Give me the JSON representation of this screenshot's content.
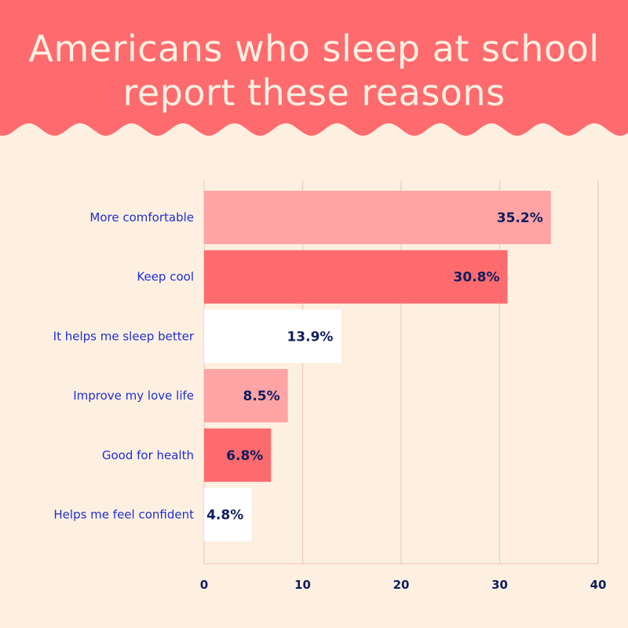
{
  "title_lines": [
    "Americans who sleep at school",
    "report these reasons"
  ],
  "colors": {
    "background": "#fdf0e1",
    "header": "#fe6b6f",
    "bar_colors": [
      "#fea4a4",
      "#fe6b6f",
      "#ffffff",
      "#fea4a4",
      "#fe6b6f",
      "#ffffff"
    ],
    "category_text": "#1f2fd0",
    "value_text": "#0f1d5e",
    "grid": "#f1cfc8"
  },
  "chart_data": {
    "type": "bar",
    "orientation": "horizontal",
    "title": "Americans who sleep at school report these reasons",
    "categories": [
      "More comfortable",
      "Keep cool",
      "It helps me sleep better",
      "Improve my love life",
      "Good for health",
      "Helps me feel confident"
    ],
    "values": [
      35.2,
      30.8,
      13.9,
      8.5,
      6.8,
      4.8
    ],
    "value_labels": [
      "35.2%",
      "30.8%",
      "13.9%",
      "8.5%",
      "6.8%",
      "4.8%"
    ],
    "x_ticks": [
      0,
      10,
      20,
      30,
      40
    ],
    "xlim": [
      0,
      40
    ],
    "xlabel": "",
    "ylabel": "",
    "grid": true,
    "legend": "none"
  }
}
